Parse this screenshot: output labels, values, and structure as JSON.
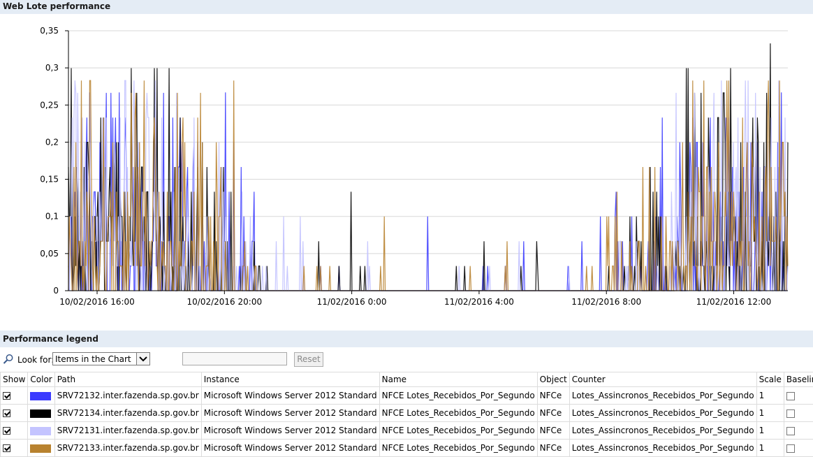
{
  "chart_section": {
    "title": "Web Lote performance"
  },
  "legend_section": {
    "title": "Performance legend"
  },
  "toolbar": {
    "look_for_label": "Look for:",
    "look_for_value": "Items in the Chart",
    "filter_value": "",
    "reset_label": "Reset"
  },
  "table": {
    "headers": [
      "Show",
      "Color",
      "Path",
      "Instance",
      "Name",
      "Object",
      "Counter",
      "Scale",
      "Baseline"
    ],
    "rows": [
      {
        "show": true,
        "color": "#3b3bff",
        "path": "SRV72132.inter.fazenda.sp.gov.br",
        "instance": "Microsoft Windows Server 2012 Standard",
        "name": "NFCE Lotes_Recebidos_Por_Segundo",
        "object": "NFCe",
        "counter": "Lotes_Assincronos_Recebidos_Por_Segundo",
        "scale": "1",
        "baseline": false
      },
      {
        "show": true,
        "color": "#000000",
        "path": "SRV72134.inter.fazenda.sp.gov.br",
        "instance": "Microsoft Windows Server 2012 Standard",
        "name": "NFCE Lotes_Recebidos_Por_Segundo",
        "object": "NFCe",
        "counter": "Lotes_Assincronos_Recebidos_Por_Segundo",
        "scale": "1",
        "baseline": false
      },
      {
        "show": true,
        "color": "#c4c4ff",
        "path": "SRV72131.inter.fazenda.sp.gov.br",
        "instance": "Microsoft Windows Server 2012 Standard",
        "name": "NFCE Lotes_Recebidos_Por_Segundo",
        "object": "NFCe",
        "counter": "Lotes_Assincronos_Recebidos_Por_Segundo",
        "scale": "1",
        "baseline": false
      },
      {
        "show": true,
        "color": "#b8822f",
        "path": "SRV72133.inter.fazenda.sp.gov.br",
        "instance": "Microsoft Windows Server 2012 Standard",
        "name": "NFCE Lotes_Recebidos_Por_Segundo",
        "object": "NFCe",
        "counter": "Lotes_Assincronos_Recebidos_Por_Segundo",
        "scale": "1",
        "baseline": false
      }
    ]
  },
  "chart_data": {
    "type": "line",
    "title": "",
    "xlabel": "",
    "ylabel": "",
    "ylim": [
      0,
      0.35
    ],
    "grid": true,
    "y_ticks": [
      "0",
      "0,05",
      "0,1",
      "0,15",
      "0,2",
      "0,25",
      "0,3",
      "0,35"
    ],
    "x_range_hours": [
      15.1,
      13.7
    ],
    "x_ticks": [
      "10/02/2016 16:00",
      "10/02/2016 20:00",
      "11/02/2016 0:00",
      "11/02/2016 4:00",
      "11/02/2016 8:00",
      "11/02/2016 12:00"
    ],
    "series": [
      {
        "color": "#3b3bff",
        "peak_value": 0.267
      },
      {
        "color": "#000000",
        "peak_value": 0.35
      },
      {
        "color": "#c4c4ff",
        "peak_value": 0.283
      },
      {
        "color": "#b8822f",
        "peak_value": 0.283
      }
    ]
  },
  "icons": {
    "look_for": "magnifier-icon",
    "dropdown": "chevron-down-icon"
  }
}
